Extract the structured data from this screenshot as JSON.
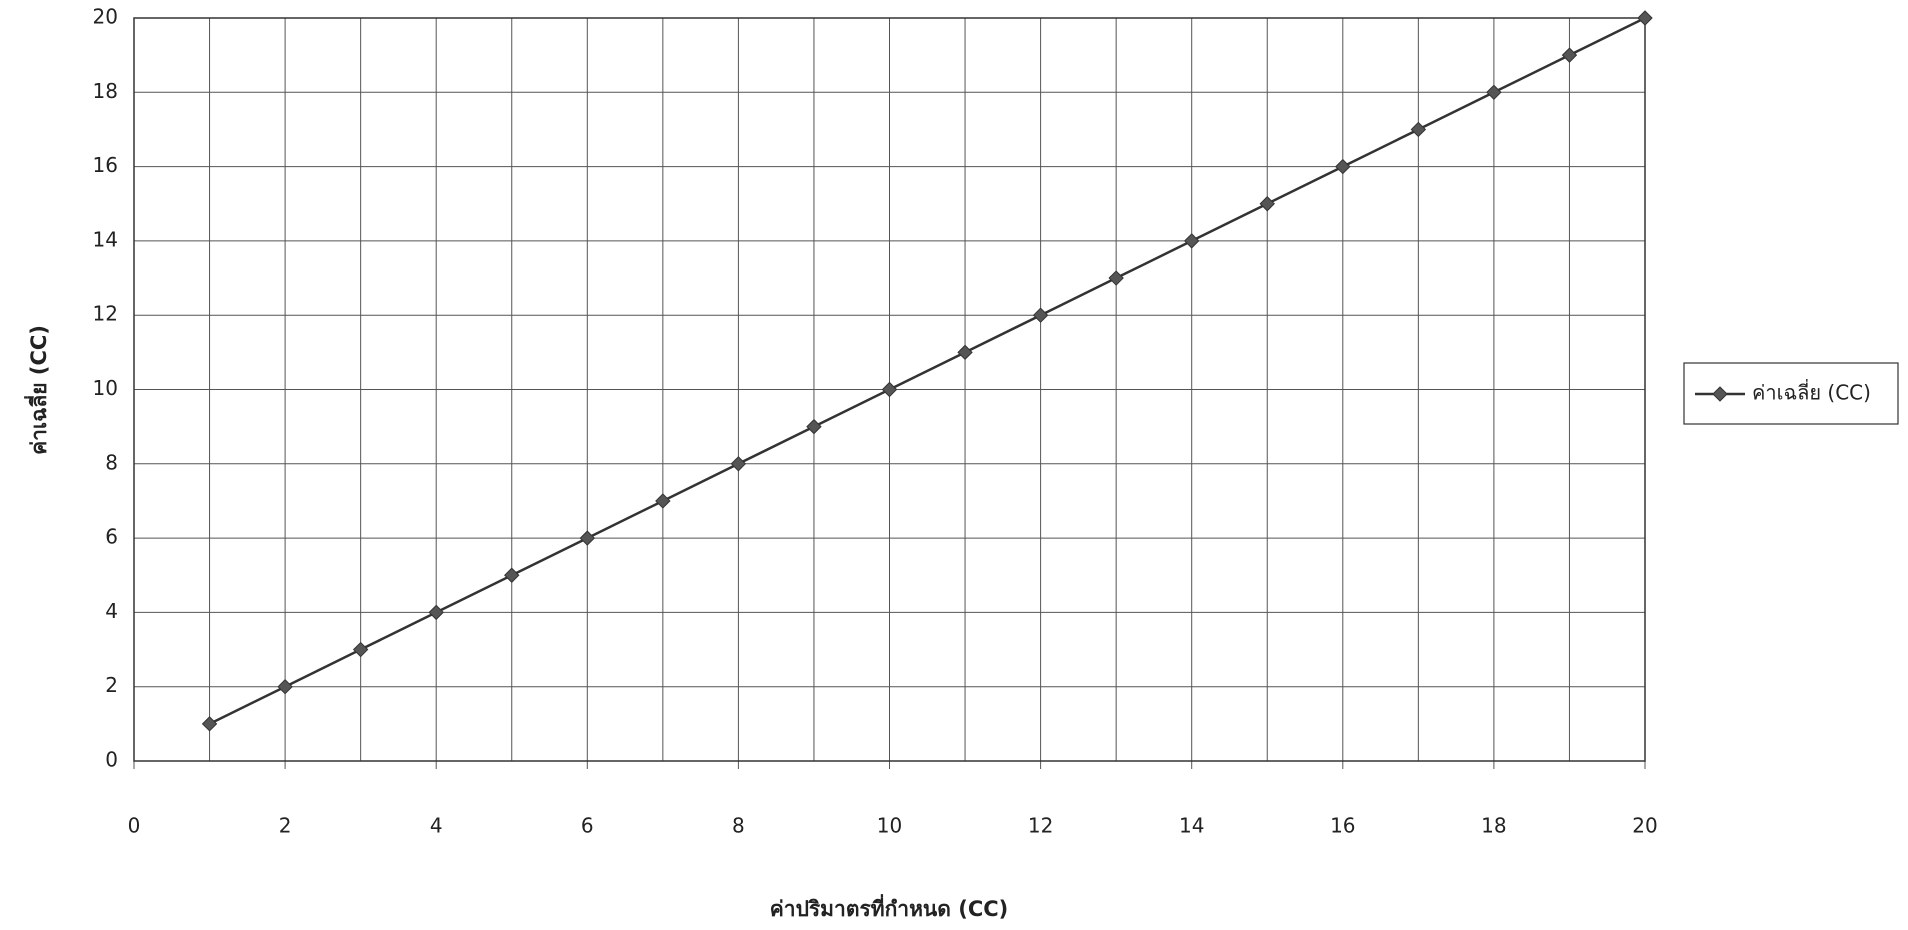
{
  "chart_data": {
    "type": "line",
    "x_label": "ค่าปริมาตรที่กำหนด (CC)",
    "y_label": "ค่าเฉลี่ย (CC)",
    "xlim": [
      0,
      20
    ],
    "ylim": [
      0,
      20
    ],
    "xticks": [
      0,
      2,
      4,
      6,
      8,
      10,
      12,
      14,
      16,
      18,
      20
    ],
    "x_minor_grid": [
      1,
      3,
      5,
      7,
      9,
      11,
      13,
      15,
      17,
      19
    ],
    "yticks": [
      0,
      2,
      4,
      6,
      8,
      10,
      12,
      14,
      16,
      18,
      20
    ],
    "grid": true,
    "legend": "right",
    "series": [
      {
        "name": "ค่าเฉลี่ย (CC)",
        "color": "#333333",
        "marker": "diamond",
        "x": [
          1,
          2,
          3,
          4,
          5,
          6,
          7,
          8,
          9,
          10,
          11,
          12,
          13,
          14,
          15,
          16,
          17,
          18,
          19,
          20
        ],
        "values": [
          1,
          2,
          3,
          4,
          5,
          6,
          7,
          8,
          9,
          10,
          11,
          12,
          13,
          14,
          15,
          16,
          17,
          18,
          19,
          20
        ]
      }
    ]
  }
}
